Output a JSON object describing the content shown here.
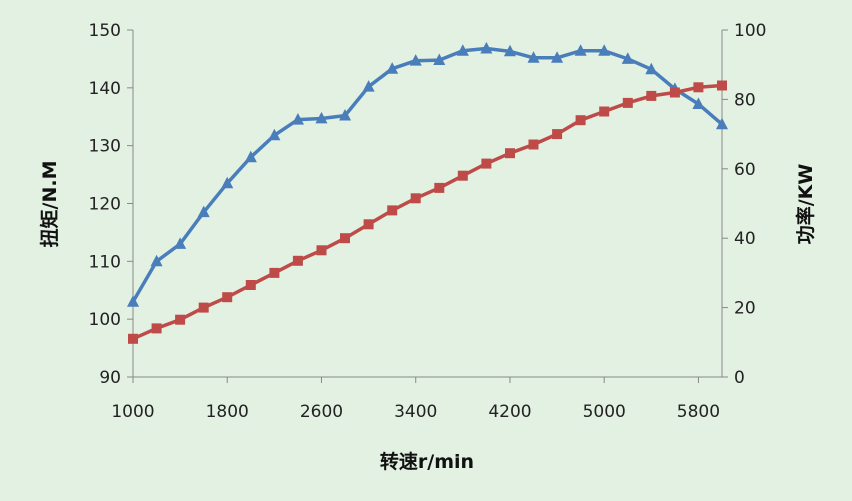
{
  "chart_data": {
    "type": "line",
    "title": "",
    "xlabel": "转速r/min",
    "ylabel": "扭矩/N.M",
    "y2label": "功率/KW",
    "xlim": [
      1000,
      6000
    ],
    "ylim": [
      90,
      150
    ],
    "y2lim": [
      0,
      100
    ],
    "x_ticks": [
      1000,
      1800,
      2600,
      3400,
      4200,
      5000,
      5800
    ],
    "y_ticks": [
      90,
      100,
      110,
      120,
      130,
      140,
      150
    ],
    "y2_ticks": [
      0,
      20,
      40,
      60,
      80,
      100
    ],
    "grid": false,
    "legend": "none",
    "x": [
      1000,
      1200,
      1400,
      1600,
      1800,
      2000,
      2200,
      2400,
      2600,
      2800,
      3000,
      3200,
      3400,
      3600,
      3800,
      4000,
      4200,
      4400,
      4600,
      4800,
      5000,
      5200,
      5400,
      5600,
      5800,
      6000
    ],
    "series": [
      {
        "axis": "left",
        "color": "#4a7ebb",
        "marker": "triangle",
        "values": [
          103,
          110,
          113,
          118.5,
          123.5,
          128,
          131.8,
          134.5,
          134.7,
          135.2,
          140.2,
          143.3,
          144.7,
          144.8,
          146.4,
          146.8,
          146.3,
          145.2,
          145.2,
          146.4,
          146.4,
          145,
          143.2,
          139.8,
          137.2,
          133.7
        ]
      },
      {
        "axis": "right",
        "color": "#be4b48",
        "marker": "square",
        "values": [
          11,
          14,
          16.5,
          20,
          23,
          26.5,
          30,
          33.5,
          36.5,
          40,
          44,
          48,
          51.5,
          54.5,
          58,
          61.5,
          64.5,
          67,
          70,
          74,
          76.5,
          79,
          81,
          82,
          83.5,
          84
        ]
      }
    ]
  }
}
